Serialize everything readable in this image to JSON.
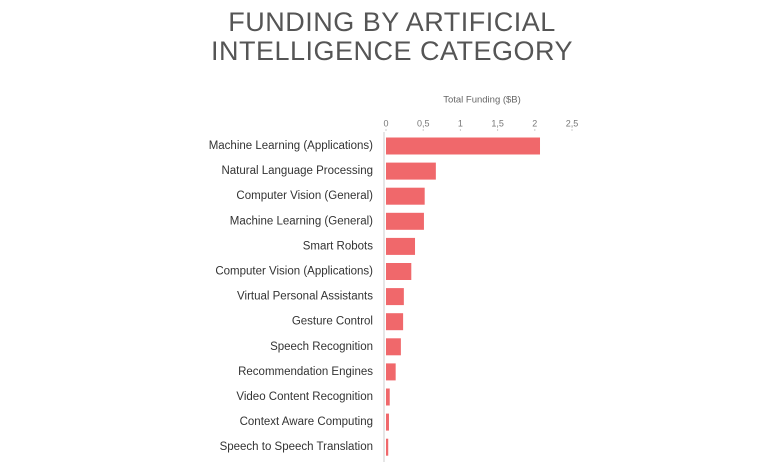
{
  "chart_data": {
    "type": "bar",
    "orientation": "horizontal",
    "title": [
      "FUNDING BY ARTIFICIAL",
      "INTELLIGENCE CATEGORY"
    ],
    "xlabel": "Total Funding ($B)",
    "categories": [
      "Machine Learning (Applications)",
      "Natural Language Processing",
      "Computer Vision (General)",
      "Machine Learning (General)",
      "Smart Robots",
      "Computer Vision (Applications)",
      "Virtual Personal Assistants",
      "Gesture Control",
      "Speech Recognition",
      "Recommendation Engines",
      "Video Content Recognition",
      "Context Aware Computing",
      "Speech to Speech Translation"
    ],
    "values": [
      2.07,
      0.67,
      0.52,
      0.51,
      0.39,
      0.34,
      0.24,
      0.23,
      0.2,
      0.13,
      0.05,
      0.04,
      0.03
    ],
    "color": "#f0686b",
    "xlim": [
      0,
      2.5
    ],
    "xticks": [
      0,
      {
        "value": 0.5,
        "label": "0,5"
      },
      1,
      {
        "value": 1.5,
        "label": "1,5"
      },
      2,
      {
        "value": 2.5,
        "label": "2,5"
      }
    ]
  }
}
